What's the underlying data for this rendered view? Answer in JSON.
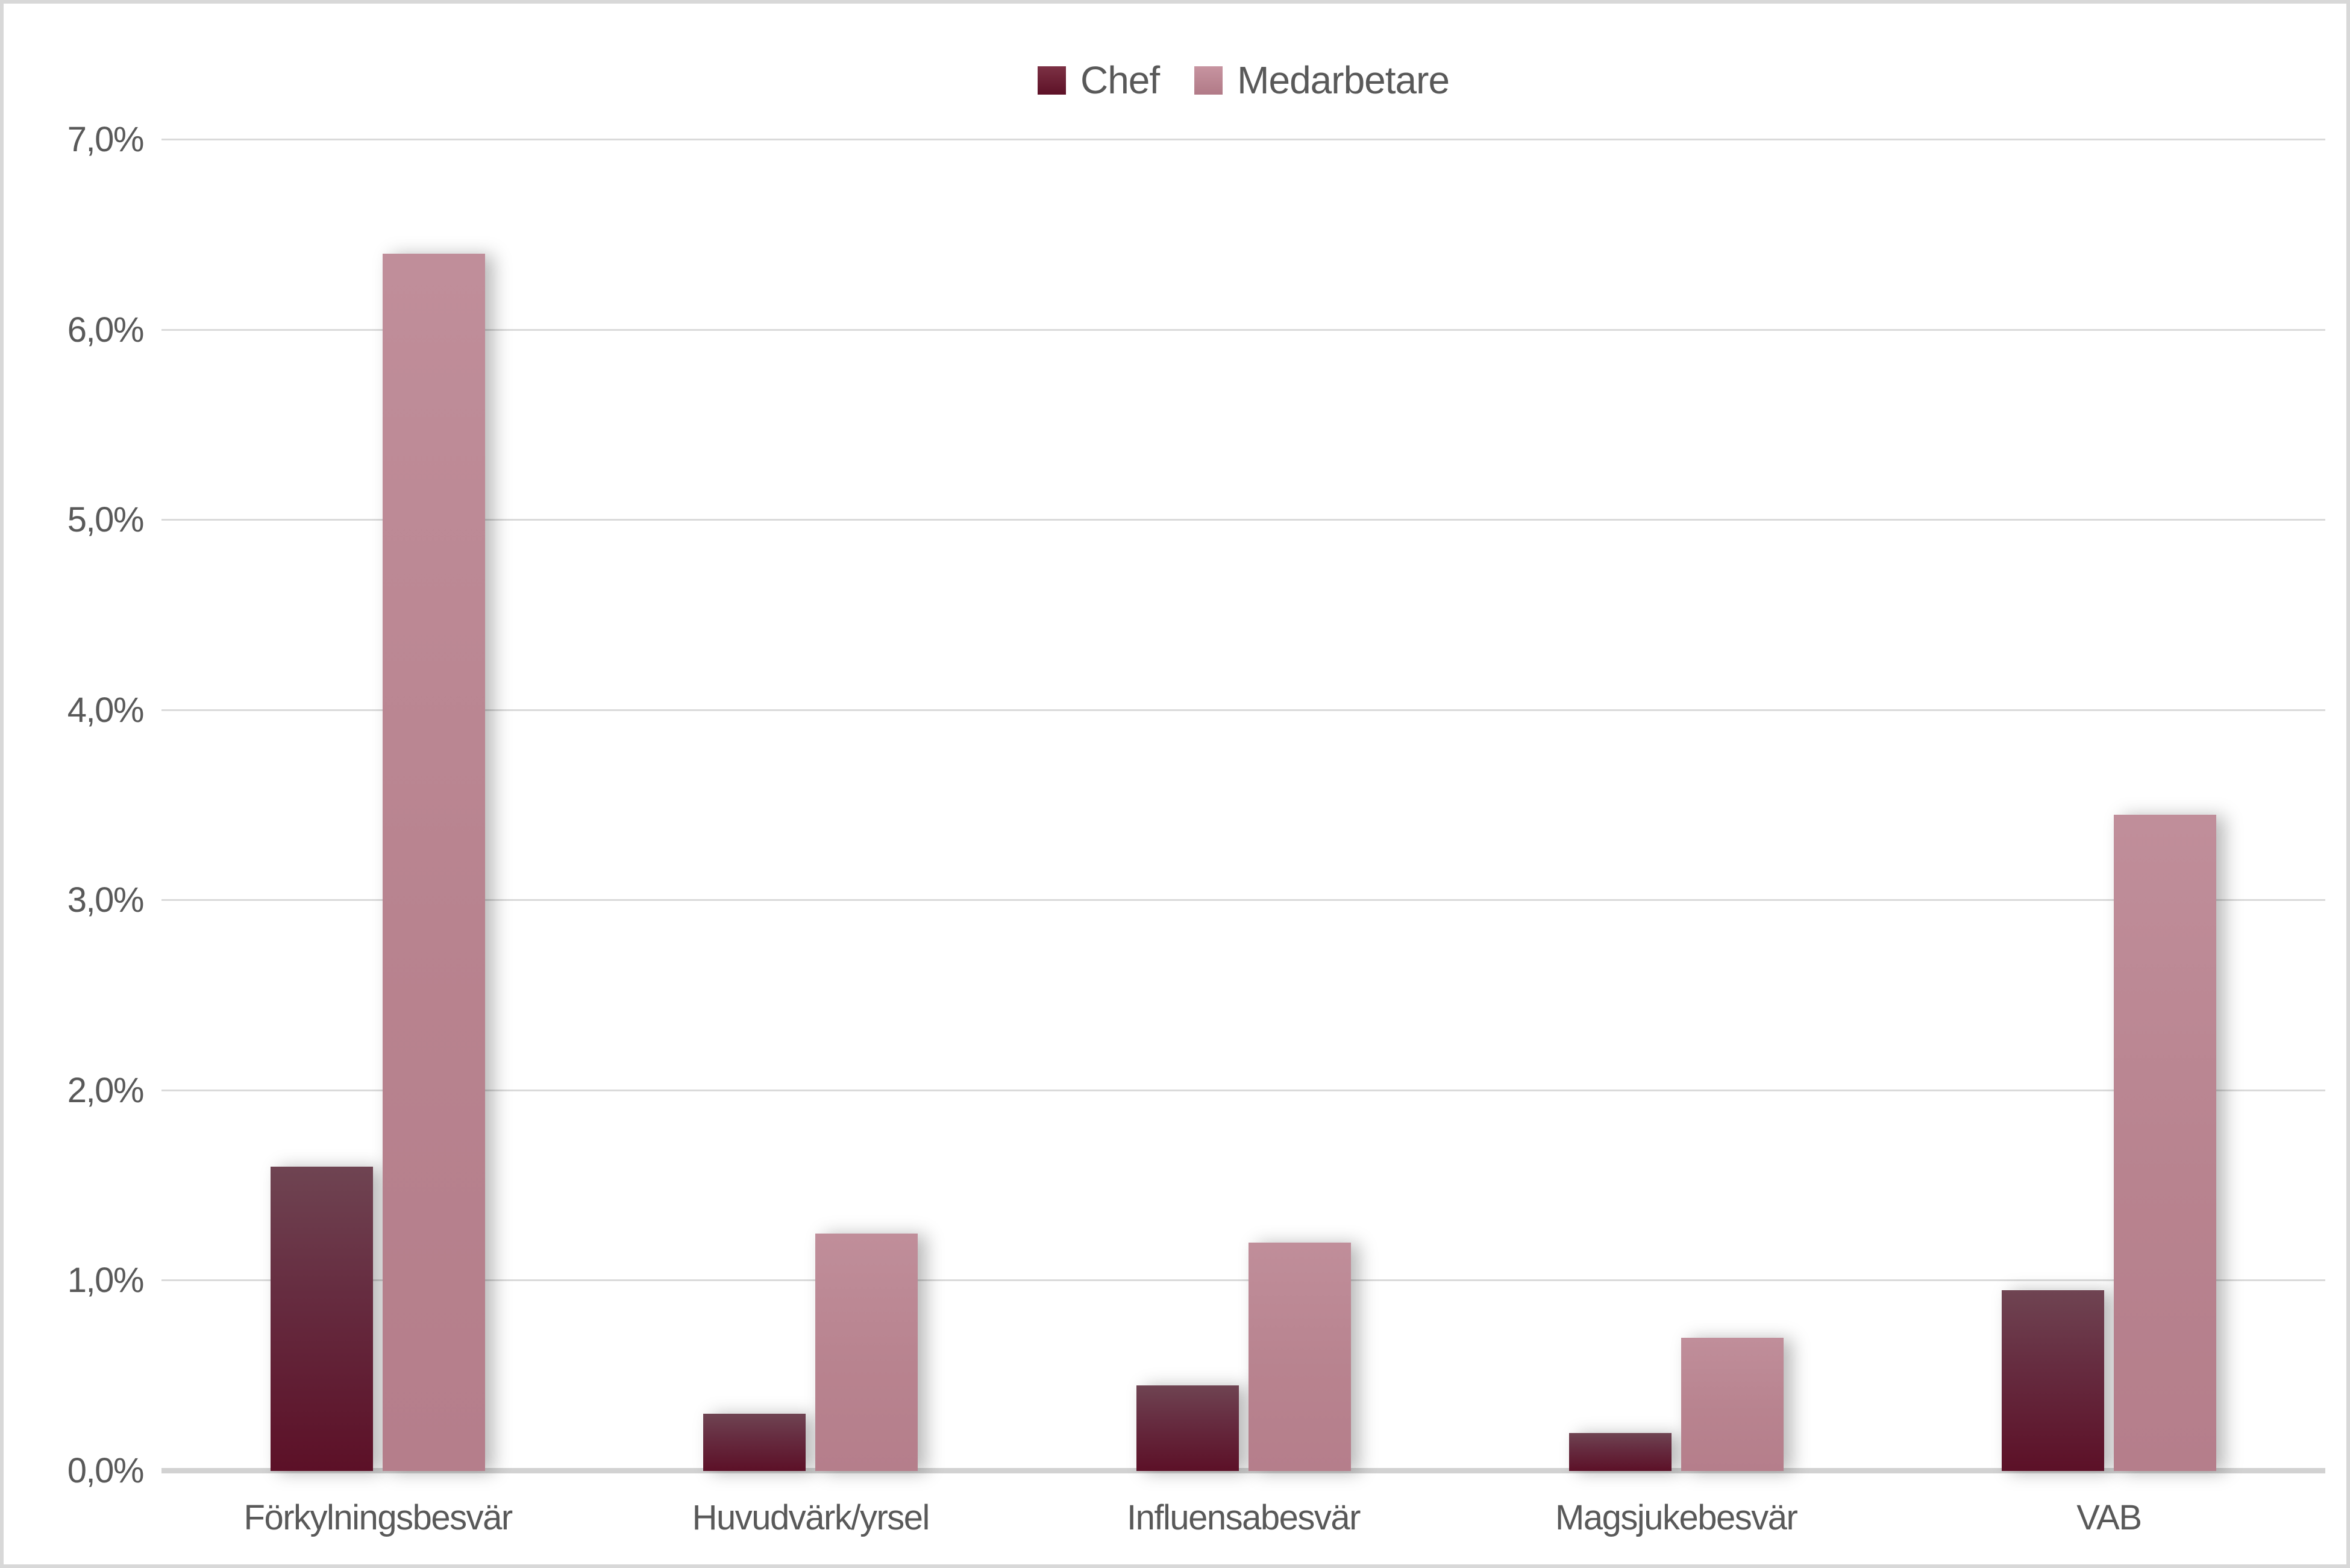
{
  "chart_data": {
    "type": "bar",
    "title": "",
    "xlabel": "",
    "ylabel": "",
    "categories": [
      "Förkylningsbesvär",
      "Huvudvärk/yrsel",
      "Influensabesvär",
      "Magsjukebesvär",
      "VAB"
    ],
    "series": [
      {
        "name": "Chef",
        "values": [
          1.6,
          0.3,
          0.45,
          0.2,
          0.95
        ]
      },
      {
        "name": "Medarbetare",
        "values": [
          6.4,
          1.25,
          1.2,
          0.7,
          3.45
        ]
      }
    ],
    "ylim": [
      0,
      7
    ],
    "ytick_step": 1,
    "ytick_labels": [
      "0,0%",
      "1,0%",
      "2,0%",
      "3,0%",
      "4,0%",
      "5,0%",
      "6,0%",
      "7,0%"
    ],
    "grid": true,
    "legend_position": "top-center",
    "value_format": "percent, Swedish decimal comma, one decimal"
  },
  "colors": {
    "background": "#FFFFFF",
    "page_border": "#D8D8D8",
    "gridline": "#DADADA",
    "axis_line": "#D2D2D2",
    "axis_text": "#595959",
    "chef_bar_top": "#6F4452",
    "chef_bar_mid": "#662C40",
    "chef_bar_bottom": "#5C1027",
    "medarbetare_bar_top": "#C08E9A",
    "medarbetare_bar_mid": "#B8838F",
    "medarbetare_bar_bottom": "#B57E8B",
    "legend_chef_top": "#7C3144",
    "legend_chef_bottom": "#5D1127",
    "legend_medarbetare_top": "#C794A0",
    "legend_medarbetare_bottom": "#B17A87"
  }
}
